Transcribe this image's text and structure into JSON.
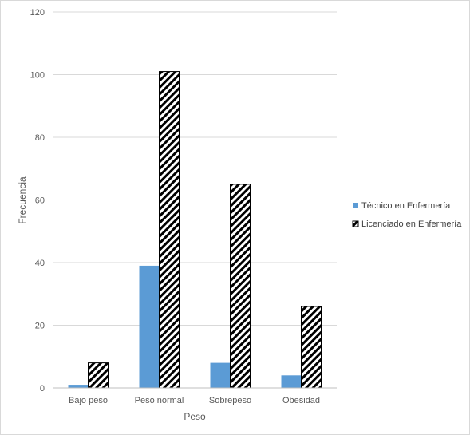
{
  "chart_data": {
    "type": "bar",
    "title": "",
    "xlabel": "Peso",
    "ylabel": "Frecuencia",
    "categories": [
      "Bajo peso",
      "Peso normal",
      "Sobrepeso",
      "Obesidad"
    ],
    "series": [
      {
        "name": "Técnico en Enfermería",
        "values": [
          1,
          39,
          8,
          4
        ],
        "color": "#5b9bd5",
        "pattern": "solid"
      },
      {
        "name": "Licenciado en Enfermería",
        "values": [
          8,
          101,
          65,
          26
        ],
        "color": "#000000",
        "pattern": "diagonal-stripes"
      }
    ],
    "ylim": [
      0,
      120
    ],
    "yticks": [
      0,
      20,
      40,
      60,
      80,
      100,
      120
    ],
    "grid": true,
    "legend_position": "right"
  }
}
